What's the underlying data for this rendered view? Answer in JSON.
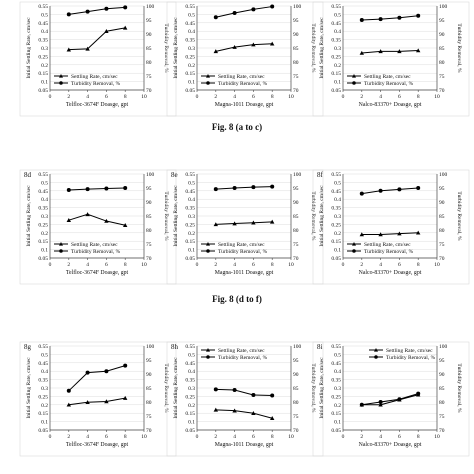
{
  "figure_captions": [
    "Fig. 8 (a to c)",
    "Fig. 8 (d to f)"
  ],
  "chart_data": [
    {
      "id": "8a",
      "panel_label": "",
      "type": "line",
      "xlabel": "Telfloc-3674F Doasge, gpt",
      "ylabel": "Initial Settling Rate, cm/sec",
      "y2label": "Turbidity Removal, %",
      "xlim": [
        0,
        10
      ],
      "ylim": [
        0.05,
        0.55
      ],
      "y2lim": [
        70,
        100
      ],
      "xticks": [
        0,
        2,
        4,
        6,
        8,
        10
      ],
      "yticks": [
        "0.05",
        "0.1",
        "0.15",
        "0.2",
        "0.25",
        "0.3",
        "0.35",
        "0.4",
        "0.45",
        "0.5",
        "0.55"
      ],
      "y2ticks": [
        "70",
        "75",
        "80",
        "85",
        "90",
        "95",
        "100"
      ],
      "legend_position": "bottom-left",
      "series": [
        {
          "name": "Settling Rate, cm/sec",
          "axis": "left",
          "marker": "triangle",
          "x": [
            2,
            4,
            6,
            8
          ],
          "y": [
            0.29,
            0.295,
            0.4,
            0.42
          ]
        },
        {
          "name": "Turbidity Removal, %",
          "axis": "right",
          "marker": "circle",
          "x": [
            2,
            4,
            6,
            8
          ],
          "y": [
            97,
            98,
            99,
            99.5
          ]
        }
      ]
    },
    {
      "id": "8b",
      "panel_label": "",
      "type": "line",
      "xlabel": "Magna-1011 Doasge, gpt",
      "ylabel": "Initial Settling Rate, cm/sec",
      "y2label": "Turbidity Removal, %",
      "xlim": [
        0,
        10
      ],
      "ylim": [
        0.05,
        0.55
      ],
      "y2lim": [
        70,
        100
      ],
      "xticks": [
        0,
        2,
        4,
        6,
        8,
        10
      ],
      "yticks": [
        "0.05",
        "0.1",
        "0.15",
        "0.2",
        "0.25",
        "0.3",
        "0.35",
        "0.4",
        "0.45",
        "0.5",
        "0.55"
      ],
      "y2ticks": [
        "70",
        "75",
        "80",
        "85",
        "90",
        "95",
        "100"
      ],
      "legend_position": "bottom-left",
      "series": [
        {
          "name": "Settling Rate, cm/sec",
          "axis": "left",
          "marker": "triangle",
          "x": [
            2,
            4,
            6,
            8
          ],
          "y": [
            0.28,
            0.305,
            0.32,
            0.325
          ]
        },
        {
          "name": "Turbidity Removal, %",
          "axis": "right",
          "marker": "circle",
          "x": [
            2,
            4,
            6,
            8
          ],
          "y": [
            96,
            97.5,
            98.8,
            99.8
          ]
        }
      ]
    },
    {
      "id": "8c",
      "panel_label": "",
      "type": "line",
      "xlabel": "Nalco-83370+ Doasge, gpt",
      "ylabel": "Initial Settling Rate, cm/sec",
      "y2label": "Turbidity Removal, %",
      "xlim": [
        0,
        10
      ],
      "ylim": [
        0.05,
        0.55
      ],
      "y2lim": [
        70,
        100
      ],
      "xticks": [
        0,
        2,
        4,
        6,
        8,
        10
      ],
      "yticks": [
        "0.05",
        "0.1",
        "0.15",
        "0.2",
        "0.25",
        "0.3",
        "0.35",
        "0.4",
        "0.45",
        "0.5",
        "0.55"
      ],
      "y2ticks": [
        "70",
        "75",
        "80",
        "85",
        "90",
        "95",
        "100"
      ],
      "legend_position": "bottom-left",
      "series": [
        {
          "name": "Settling Rate, cm/sec",
          "axis": "left",
          "marker": "triangle",
          "x": [
            2,
            4,
            6,
            8
          ],
          "y": [
            0.27,
            0.28,
            0.28,
            0.285
          ]
        },
        {
          "name": "Turbidity Removal, %",
          "axis": "right",
          "marker": "circle",
          "x": [
            2,
            4,
            6,
            8
          ],
          "y": [
            95,
            95.3,
            95.8,
            96.5
          ]
        }
      ]
    },
    {
      "id": "8d",
      "panel_label": "8d",
      "type": "line",
      "xlabel": "Telfloc-3674F Doasge, gpt",
      "ylabel": "Initial Settling Rate, cm/sec",
      "y2label": "Turbidity Removal, %",
      "xlim": [
        0,
        10
      ],
      "ylim": [
        0.05,
        0.55
      ],
      "y2lim": [
        70,
        100
      ],
      "xticks": [
        0,
        2,
        4,
        6,
        8,
        10
      ],
      "yticks": [
        "0.05",
        "0.1",
        "0.15",
        "0.2",
        "0.25",
        "0.3",
        "0.35",
        "0.4",
        "0.45",
        "0.5",
        "0.55"
      ],
      "y2ticks": [
        "70",
        "75",
        "80",
        "85",
        "90",
        "95",
        "100"
      ],
      "legend_position": "bottom-left",
      "series": [
        {
          "name": "Settling Rate, cm/sec",
          "axis": "left",
          "marker": "triangle",
          "x": [
            2,
            4,
            6,
            8
          ],
          "y": [
            0.275,
            0.31,
            0.27,
            0.245
          ]
        },
        {
          "name": "Turbidity Removal, %",
          "axis": "right",
          "marker": "circle",
          "x": [
            2,
            4,
            6,
            8
          ],
          "y": [
            94.3,
            94.6,
            94.8,
            95
          ]
        }
      ]
    },
    {
      "id": "8e",
      "panel_label": "8e",
      "type": "line",
      "xlabel": "Magna-1011 Doasge, gpt",
      "ylabel": "Initial Settling Rate, cm/sec",
      "y2label": "Turbidity Removal, %",
      "xlim": [
        0,
        10
      ],
      "ylim": [
        0.05,
        0.55
      ],
      "y2lim": [
        70,
        100
      ],
      "xticks": [
        0,
        2,
        4,
        6,
        8,
        10
      ],
      "yticks": [
        "0.05",
        "0.1",
        "0.15",
        "0.2",
        "0.25",
        "0.3",
        "0.35",
        "0.4",
        "0.45",
        "0.5",
        "0.55"
      ],
      "y2ticks": [
        "70",
        "75",
        "80",
        "85",
        "90",
        "95",
        "100"
      ],
      "legend_position": "bottom-left",
      "series": [
        {
          "name": "Settling Rate, cm/sec",
          "axis": "left",
          "marker": "triangle",
          "x": [
            2,
            4,
            6,
            8
          ],
          "y": [
            0.25,
            0.255,
            0.26,
            0.265
          ]
        },
        {
          "name": "Turbidity Removal, %",
          "axis": "right",
          "marker": "circle",
          "x": [
            2,
            4,
            6,
            8
          ],
          "y": [
            94.6,
            95,
            95.3,
            95.5
          ]
        }
      ]
    },
    {
      "id": "8f",
      "panel_label": "8f",
      "type": "line",
      "xlabel": "Nalco-83370+ Doasge, gpt",
      "ylabel": "Initial Settling Rate, cm/sec",
      "y2label": "Turbidity Removal, %",
      "xlim": [
        0,
        10
      ],
      "ylim": [
        0.05,
        0.55
      ],
      "y2lim": [
        70,
        100
      ],
      "xticks": [
        0,
        2,
        4,
        6,
        8,
        10
      ],
      "yticks": [
        "0.05",
        "0.1",
        "0.15",
        "0.2",
        "0.25",
        "0.3",
        "0.35",
        "0.4",
        "0.45",
        "0.5",
        "0.55"
      ],
      "y2ticks": [
        "70",
        "75",
        "80",
        "85",
        "90",
        "95",
        "100"
      ],
      "legend_position": "bottom-left",
      "series": [
        {
          "name": "Settling Rate, cm/sec",
          "axis": "left",
          "marker": "triangle",
          "x": [
            2,
            4,
            6,
            8
          ],
          "y": [
            0.19,
            0.19,
            0.195,
            0.2
          ]
        },
        {
          "name": "Turbidity Removal, %",
          "axis": "right",
          "marker": "circle",
          "x": [
            2,
            4,
            6,
            8
          ],
          "y": [
            93,
            94,
            94.5,
            95
          ]
        }
      ]
    },
    {
      "id": "8g",
      "panel_label": "8g",
      "type": "line",
      "xlabel": "Telfloc-3674F Doasge, gpt",
      "ylabel": "Initial Settling Rate, cm/sec",
      "y2label": "Turbidity Removal, %",
      "xlim": [
        0,
        10
      ],
      "ylim": [
        0.05,
        0.55
      ],
      "y2lim": [
        70,
        100
      ],
      "xticks": [
        0,
        2,
        4,
        6,
        8,
        10
      ],
      "yticks": [
        "0.05",
        "0.1",
        "0.15",
        "0.2",
        "0.25",
        "0.3",
        "0.35",
        "0.4",
        "0.45",
        "0.5",
        "0.55"
      ],
      "y2ticks": [
        "70",
        "75",
        "80",
        "85",
        "90",
        "95",
        "100"
      ],
      "legend_position": "none",
      "series": [
        {
          "name": "",
          "axis": "left",
          "marker": "triangle",
          "x": [
            2,
            4,
            6,
            8
          ],
          "y": [
            0.2,
            0.215,
            0.22,
            0.24
          ]
        },
        {
          "name": "",
          "axis": "right",
          "marker": "circle",
          "x": [
            2,
            4,
            6,
            8
          ],
          "y": [
            84,
            90.5,
            91,
            93
          ]
        }
      ]
    },
    {
      "id": "8h",
      "panel_label": "8h",
      "type": "line",
      "xlabel": "Magna-1011 Doasge, gpt",
      "ylabel": "Initial Settling Rate, cm/sec",
      "y2label": "Turbidity Removal, %",
      "xlim": [
        0,
        10
      ],
      "ylim": [
        0.05,
        0.55
      ],
      "y2lim": [
        70,
        100
      ],
      "xticks": [
        0,
        2,
        4,
        6,
        8,
        10
      ],
      "yticks": [
        "0.05",
        "0.1",
        "0.15",
        "0.2",
        "0.25",
        "0.3",
        "0.35",
        "0.4",
        "0.45",
        "0.5",
        "0.55"
      ],
      "y2ticks": [
        "70",
        "75",
        "80",
        "85",
        "90",
        "95",
        "100"
      ],
      "legend_position": "top-left",
      "series": [
        {
          "name": "Settling Rate, cm/sec",
          "axis": "left",
          "marker": "triangle",
          "x": [
            2,
            4,
            6,
            8
          ],
          "y": [
            0.17,
            0.165,
            0.15,
            0.12
          ]
        },
        {
          "name": "Turbidity Removal, %",
          "axis": "right",
          "marker": "circle",
          "x": [
            2,
            4,
            6,
            8
          ],
          "y": [
            84.5,
            84.3,
            82.5,
            82.3
          ]
        }
      ]
    },
    {
      "id": "8i",
      "panel_label": "8i",
      "type": "line",
      "xlabel": "Nalco-83370+ Doasge, gpt",
      "ylabel": "Initial Settling Rate, cm/sec",
      "y2label": "Turbidity Removal, %",
      "xlim": [
        0,
        10
      ],
      "ylim": [
        0.05,
        0.55
      ],
      "y2lim": [
        70,
        100
      ],
      "xticks": [
        0,
        2,
        4,
        6,
        8,
        10
      ],
      "yticks": [
        "0.05",
        "0.1",
        "0.15",
        "0.2",
        "0.25",
        "0.3",
        "0.35",
        "0.4",
        "0.45",
        "0.5",
        "0.55"
      ],
      "y2ticks": [
        "70",
        "75",
        "80",
        "85",
        "90",
        "95",
        "100"
      ],
      "legend_position": "top-right",
      "series": [
        {
          "name": "Settling Rate, cm/sec",
          "axis": "left",
          "marker": "triangle",
          "x": [
            2,
            4,
            6,
            8
          ],
          "y": [
            0.2,
            0.2,
            0.23,
            0.26
          ]
        },
        {
          "name": "Turbidity Removal, %",
          "axis": "right",
          "marker": "circle",
          "x": [
            2,
            4,
            6,
            8
          ],
          "y": [
            79,
            80,
            81,
            83
          ]
        }
      ]
    }
  ]
}
